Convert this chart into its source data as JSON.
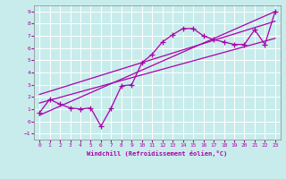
{
  "title": "",
  "xlabel": "Windchill (Refroidissement éolien,°C)",
  "ylabel": "",
  "background_color": "#c8ecec",
  "grid_color": "#ffffff",
  "line_color": "#aa00aa",
  "xlim": [
    -0.5,
    23.5
  ],
  "ylim": [
    -1.5,
    9.5
  ],
  "xticks": [
    0,
    1,
    2,
    3,
    4,
    5,
    6,
    7,
    8,
    9,
    10,
    11,
    12,
    13,
    14,
    15,
    16,
    17,
    18,
    19,
    20,
    21,
    22,
    23
  ],
  "yticks": [
    -1,
    0,
    1,
    2,
    3,
    4,
    5,
    6,
    7,
    8,
    9
  ],
  "scatter_x": [
    0,
    1,
    2,
    3,
    4,
    5,
    6,
    7,
    8,
    9,
    10,
    11,
    12,
    13,
    14,
    15,
    16,
    17,
    18,
    19,
    20,
    21,
    22,
    23
  ],
  "scatter_y": [
    0.7,
    1.8,
    1.4,
    1.1,
    1.0,
    1.1,
    -0.4,
    1.1,
    2.9,
    3.0,
    4.8,
    5.5,
    6.5,
    7.1,
    7.6,
    7.6,
    7.0,
    6.7,
    6.5,
    6.3,
    6.3,
    7.5,
    6.3,
    9.0
  ],
  "line1_x": [
    0,
    23
  ],
  "line1_y": [
    0.5,
    9.0
  ],
  "line2_x": [
    0,
    23
  ],
  "line2_y": [
    1.5,
    6.8
  ],
  "line3_x": [
    0,
    23
  ],
  "line3_y": [
    2.2,
    8.2
  ]
}
